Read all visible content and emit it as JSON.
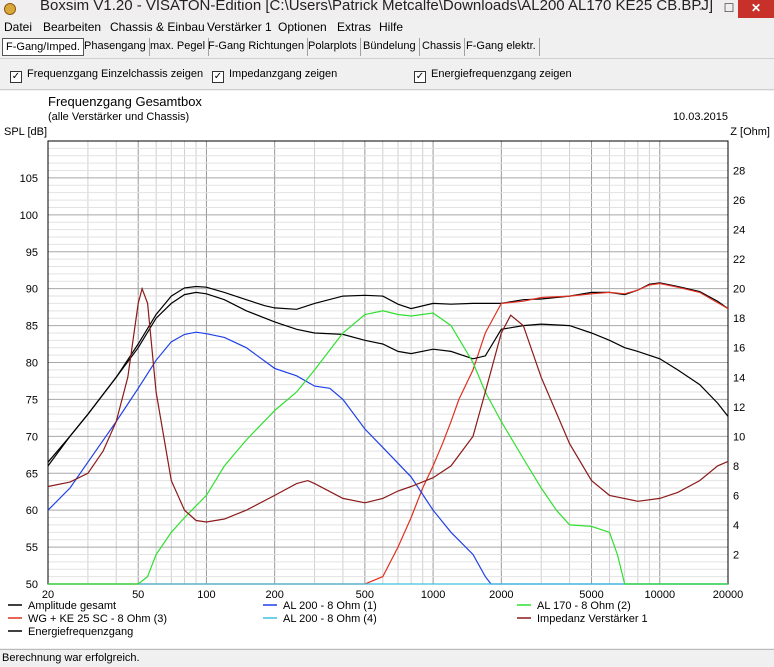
{
  "window": {
    "title": "Boxsim V1.20 - VISATON-Edition [C:\\Users\\Patrick Metcalfe\\Downloads\\AL200 AL170 KE25 CB.BPJ]",
    "min_glyph": "–",
    "max_glyph": "☐",
    "close_glyph": "✕"
  },
  "menu": [
    "Datei",
    "Bearbeiten",
    "Chassis & Einbau",
    "Verstärker 1",
    "Optionen",
    "Extras",
    "Hilfe"
  ],
  "tabs": [
    "F-Gang/Imped.",
    "Phasengang",
    "max. Pegel",
    "F-Gang Richtungen",
    "Polarplots",
    "Bündelung",
    "Chassis",
    "F-Gang elektr."
  ],
  "active_tab": "F-Gang/Imped.",
  "options": {
    "check_mark": "✓",
    "items": [
      {
        "label": "Frequenzgang Einzelchassis zeigen",
        "checked": true
      },
      {
        "label": "Impedanzgang zeigen",
        "checked": true
      },
      {
        "label": "Energiefrequenzgang zeigen",
        "checked": true
      }
    ]
  },
  "status": "Berechnung war erfolgreich.",
  "chart_data": {
    "type": "line",
    "title": "Frequenzgang Gesamtbox",
    "subtitle": "(alle Verstärker und Chassis)",
    "date": "10.03.2015",
    "ylabel": "SPL [dB]",
    "y2label": "Z [Ohm]",
    "xscale": "log",
    "xlim": [
      20,
      20000
    ],
    "ylim": [
      50,
      110
    ],
    "y2lim": [
      0,
      30
    ],
    "xticks": [
      20,
      50,
      100,
      200,
      500,
      1000,
      2000,
      5000,
      10000,
      20000
    ],
    "xticklabels": [
      "20",
      "50",
      "100",
      "200",
      "500",
      "1000",
      "2000",
      "5000",
      "10000",
      "20000"
    ],
    "yticks": [
      50,
      55,
      60,
      65,
      70,
      75,
      80,
      85,
      90,
      95,
      100,
      105
    ],
    "y2ticks": [
      2,
      4,
      6,
      8,
      10,
      12,
      14,
      16,
      18,
      20,
      22,
      24,
      26,
      28
    ],
    "grid": true,
    "legend_position": "bottom",
    "series": [
      {
        "name": "Amplitude gesamt",
        "color": "#000000",
        "axis": "left",
        "x": [
          20,
          25,
          30,
          40,
          50,
          60,
          70,
          80,
          90,
          100,
          120,
          150,
          180,
          200,
          250,
          300,
          400,
          500,
          600,
          700,
          800,
          1000,
          1200,
          1500,
          2000,
          2500,
          3000,
          4000,
          5000,
          6000,
          7000,
          8000,
          9000,
          10000,
          12000,
          15000,
          18000,
          20000
        ],
        "y": [
          66,
          70,
          73,
          78,
          82.5,
          86.5,
          89,
          90.1,
          90.3,
          90.2,
          89.5,
          88.5,
          87.7,
          87.4,
          87.2,
          88,
          89,
          89.1,
          89,
          87.9,
          87.3,
          88,
          87.9,
          88,
          88,
          88.5,
          88.6,
          89,
          89.5,
          89.5,
          89.2,
          89.8,
          90.6,
          90.8,
          90.3,
          89.6,
          88.3,
          87.3
        ]
      },
      {
        "name": "WG + KE 25 SC - 8 Ohm (3)",
        "color": "#e03020",
        "axis": "left",
        "x": [
          20,
          500,
          600,
          700,
          800,
          900,
          1000,
          1100,
          1200,
          1300,
          1500,
          1700,
          2000,
          2500,
          3000,
          4000,
          5000,
          6000,
          7000,
          8000,
          9000,
          10000,
          12000,
          15000,
          20000
        ],
        "y": [
          50,
          50,
          51,
          55,
          59,
          63,
          66,
          69,
          72,
          75,
          79,
          84,
          88,
          88.3,
          88.8,
          89,
          89.3,
          89.5,
          89.3,
          89.8,
          90.5,
          90.7,
          90.2,
          89.5,
          87.3
        ]
      },
      {
        "name": "AL 200 - 8 Ohm (1)",
        "color": "#2040e8",
        "axis": "left",
        "x": [
          20,
          25,
          30,
          40,
          50,
          60,
          70,
          80,
          90,
          100,
          120,
          150,
          200,
          250,
          300,
          350,
          400,
          500,
          600,
          800,
          1000,
          1200,
          1500,
          1700,
          1800,
          20000
        ],
        "y": [
          60,
          63,
          66.5,
          72,
          76.5,
          80.3,
          82.8,
          83.8,
          84.1,
          83.9,
          83.4,
          82,
          79.2,
          78.2,
          76.8,
          76.5,
          75,
          71,
          68.5,
          64.5,
          60,
          57,
          54,
          51,
          50,
          50
        ]
      },
      {
        "name": "AL 200 - 8 Ohm (4)",
        "color": "#40c0e0",
        "axis": "left",
        "x": [
          20,
          20000
        ],
        "y": [
          50,
          50
        ]
      },
      {
        "name": "Energiefrequenzgang",
        "color": "#000000",
        "axis": "left",
        "x": [
          20,
          25,
          30,
          40,
          50,
          60,
          70,
          80,
          90,
          100,
          120,
          150,
          200,
          250,
          300,
          400,
          500,
          600,
          700,
          800,
          1000,
          1200,
          1500,
          1700,
          2000,
          2500,
          3000,
          4000,
          5000,
          6000,
          7000,
          8000,
          10000,
          12000,
          15000,
          18000,
          20000
        ],
        "y": [
          66.5,
          70,
          73,
          78,
          82,
          86,
          88,
          89.2,
          89.5,
          89.3,
          88.5,
          87,
          85.5,
          84.5,
          84,
          83.8,
          83,
          82.5,
          81.5,
          81.2,
          81.8,
          81.5,
          80.5,
          80.9,
          84.5,
          85,
          85.2,
          85,
          84,
          83,
          82,
          81.5,
          80.5,
          79,
          77,
          74.5,
          72.7
        ]
      },
      {
        "name": "AL 170 - 8 Ohm (2)",
        "color": "#30e030",
        "axis": "left",
        "x": [
          20,
          50,
          55,
          60,
          70,
          80,
          100,
          120,
          150,
          200,
          250,
          300,
          400,
          500,
          600,
          700,
          800,
          1000,
          1200,
          1500,
          1700,
          2000,
          2500,
          3000,
          3500,
          4000,
          5000,
          6000,
          6500,
          7000,
          20000
        ],
        "y": [
          50,
          50,
          51,
          54,
          57,
          59,
          62,
          66,
          69.5,
          73.5,
          76,
          79,
          84,
          86.5,
          87,
          86.5,
          86.3,
          86.7,
          85,
          80,
          76,
          72,
          67,
          63,
          60,
          58,
          57.8,
          57,
          54,
          50,
          50
        ]
      },
      {
        "name": "Impedanz Verstärker 1",
        "color": "#8b1a1a",
        "axis": "right",
        "x": [
          20,
          25,
          30,
          35,
          40,
          45,
          50,
          52,
          55,
          60,
          70,
          80,
          90,
          100,
          120,
          150,
          200,
          250,
          280,
          300,
          400,
          500,
          600,
          700,
          800,
          1000,
          1200,
          1500,
          1700,
          2000,
          2200,
          2500,
          3000,
          4000,
          5000,
          6000,
          8000,
          10000,
          12000,
          15000,
          18000,
          20000
        ],
        "y": [
          6.6,
          6.9,
          7.5,
          9,
          11,
          14,
          19,
          20,
          19,
          13,
          7,
          5,
          4.3,
          4.2,
          4.4,
          5,
          6,
          6.8,
          7,
          6.8,
          5.8,
          5.5,
          5.8,
          6.3,
          6.6,
          7.2,
          8,
          10,
          13,
          17,
          18.2,
          17.5,
          14,
          9.5,
          7,
          6,
          5.6,
          5.8,
          6.2,
          7,
          8,
          8.3
        ]
      }
    ]
  }
}
